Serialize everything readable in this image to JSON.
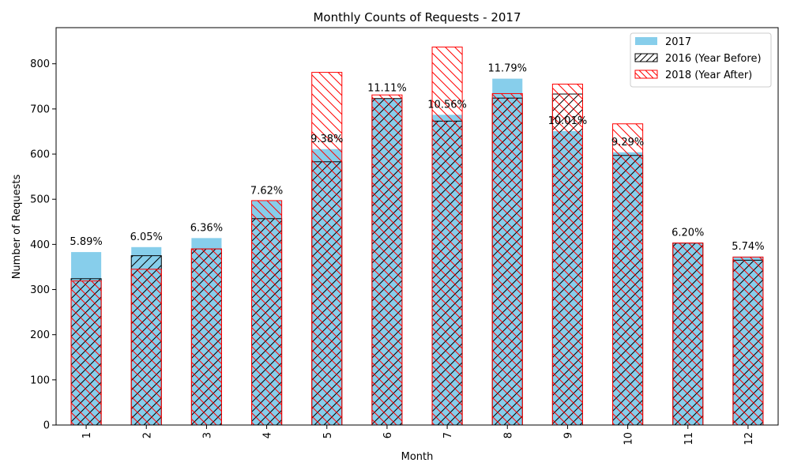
{
  "chart_data": {
    "type": "bar",
    "title": "Monthly Counts of Requests - 2017",
    "xlabel": "Month",
    "ylabel": "Number of Requests",
    "categories": [
      "1",
      "2",
      "3",
      "4",
      "5",
      "6",
      "7",
      "8",
      "9",
      "10",
      "11",
      "12"
    ],
    "ylim": [
      0,
      880
    ],
    "yticks": [
      0,
      100,
      200,
      300,
      400,
      500,
      600,
      700,
      800
    ],
    "grid": false,
    "legend_position": "top-right",
    "series": [
      {
        "name": "2017",
        "style": "filled",
        "color": "#87CEEB",
        "values": [
          383,
          394,
          414,
          496,
          611,
          723,
          687,
          767,
          651,
          604,
          403,
          373
        ]
      },
      {
        "name": "2016 (Year Before)",
        "style": "hatch-diagonal",
        "color": "#000000",
        "values": [
          324,
          375,
          390,
          457,
          583,
          723,
          673,
          724,
          733,
          597,
          403,
          365
        ]
      },
      {
        "name": "2018 (Year After)",
        "style": "hatch-backdiagonal",
        "color": "#FF0000",
        "values": [
          319,
          345,
          390,
          497,
          781,
          731,
          837,
          734,
          755,
          667,
          403,
          372
        ]
      }
    ],
    "annotations": [
      "5.89%",
      "6.05%",
      "6.36%",
      "7.62%",
      "9.38%",
      "11.11%",
      "10.56%",
      "11.79%",
      "10.01%",
      "9.29%",
      "6.20%",
      "5.74%"
    ]
  }
}
